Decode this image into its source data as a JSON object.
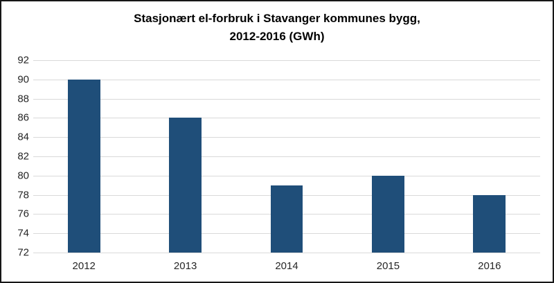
{
  "chart_data": {
    "type": "bar",
    "title_line1": "Stasjonært el-forbruk i Stavanger kommunes bygg,",
    "title_line2": "2012-2016 (GWh)",
    "categories": [
      "2012",
      "2013",
      "2014",
      "2015",
      "2016"
    ],
    "values": [
      90,
      86,
      79,
      80,
      78
    ],
    "ylabel": "",
    "xlabel": "",
    "ylim": [
      72,
      92
    ],
    "ytick_step": 2,
    "grid": true,
    "legend": false,
    "bar_color": "#1F4E79",
    "gridline_color": "#D9D9D9",
    "text_color": "#262626",
    "frame_border_color": "#161616",
    "background_color": "#FFFFFF",
    "bar_width_fraction": 0.32
  }
}
